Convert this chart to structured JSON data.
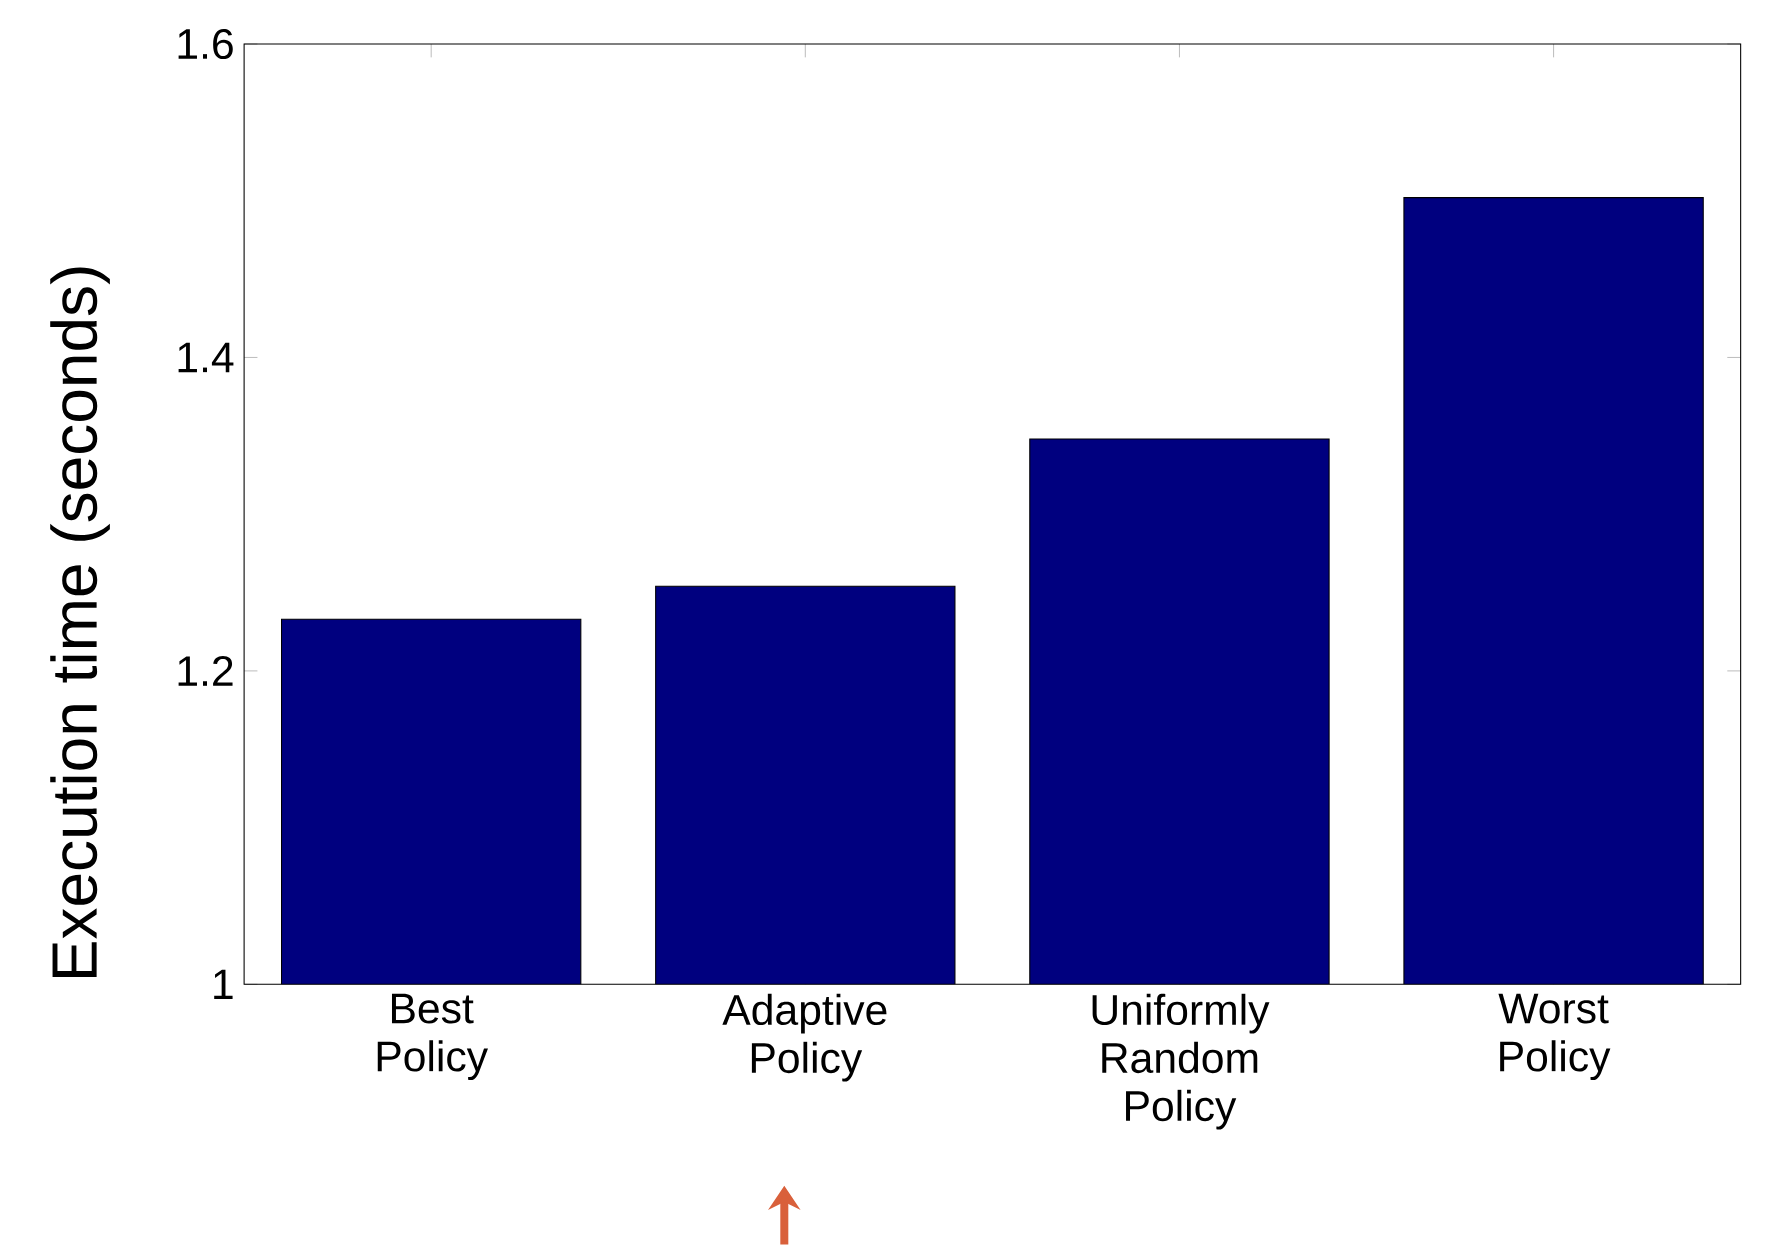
{
  "chart_data": {
    "type": "bar",
    "ylabel": "Execution time (seconds)",
    "categories": [
      "Best Policy",
      "Adaptive Policy",
      "Uniformly Random Policy",
      "Worst Policy"
    ],
    "values": [
      1.233,
      1.254,
      1.348,
      1.502
    ],
    "color": "#00007f",
    "ylim": [
      1,
      1.6
    ],
    "yticks": [
      1,
      1.2,
      1.4,
      1.6
    ]
  }
}
